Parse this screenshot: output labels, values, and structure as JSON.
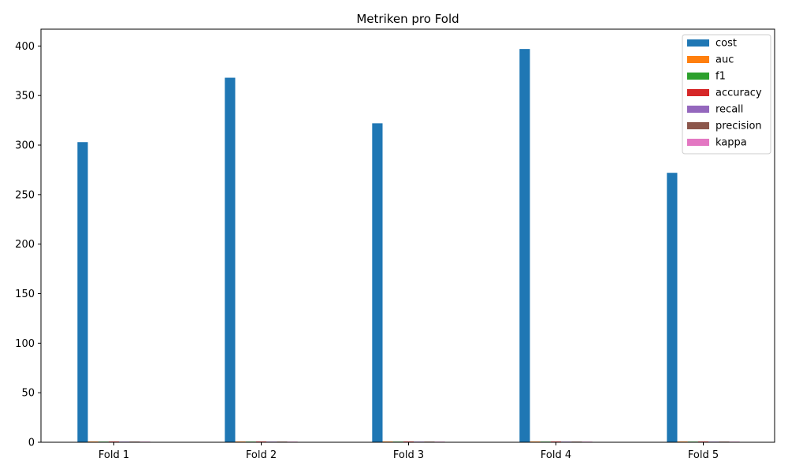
{
  "chart_data": {
    "type": "bar",
    "title": "Metriken pro Fold",
    "xlabel": "",
    "ylabel": "",
    "categories": [
      "Fold 1",
      "Fold 2",
      "Fold 3",
      "Fold 4",
      "Fold 5"
    ],
    "ylim": [
      0,
      417
    ],
    "yticks": [
      0,
      50,
      100,
      150,
      200,
      250,
      300,
      350,
      400
    ],
    "grid": false,
    "legend_position": "top-right",
    "series": [
      {
        "name": "cost",
        "color": "#1f77b4",
        "values": [
          303,
          368,
          322,
          397,
          272
        ]
      },
      {
        "name": "auc",
        "color": "#ff7f0e",
        "values": [
          0.8,
          0.8,
          0.8,
          0.8,
          0.8
        ]
      },
      {
        "name": "f1",
        "color": "#2ca02c",
        "values": [
          0.7,
          0.7,
          0.7,
          0.7,
          0.7
        ]
      },
      {
        "name": "accuracy",
        "color": "#d62728",
        "values": [
          0.8,
          0.8,
          0.8,
          0.8,
          0.8
        ]
      },
      {
        "name": "recall",
        "color": "#9467bd",
        "values": [
          0.7,
          0.7,
          0.7,
          0.7,
          0.7
        ]
      },
      {
        "name": "precision",
        "color": "#8c564b",
        "values": [
          0.7,
          0.7,
          0.7,
          0.7,
          0.7
        ]
      },
      {
        "name": "kappa",
        "color": "#e377c2",
        "values": [
          0.5,
          0.5,
          0.5,
          0.5,
          0.5
        ]
      }
    ]
  }
}
